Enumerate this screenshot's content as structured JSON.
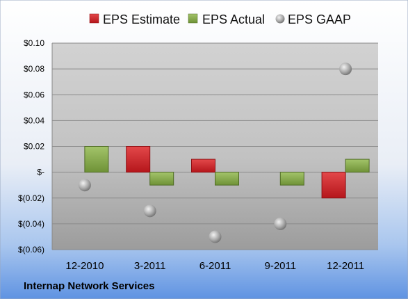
{
  "company": "Internap Network Services",
  "chart_data": {
    "type": "bar",
    "categories": [
      "12-2010",
      "3-2011",
      "6-2011",
      "9-2011",
      "12-2011"
    ],
    "series": [
      {
        "name": "EPS Estimate",
        "kind": "bar",
        "color": "#cc1f24",
        "values": [
          null,
          0.02,
          0.01,
          null,
          -0.02
        ]
      },
      {
        "name": "EPS Actual",
        "kind": "bar",
        "color": "#7fa344",
        "values": [
          0.02,
          -0.01,
          -0.01,
          -0.01,
          0.01
        ]
      },
      {
        "name": "EPS GAAP",
        "kind": "marker",
        "color": "#a0a0a0",
        "values": [
          -0.01,
          -0.03,
          -0.05,
          -0.04,
          0.08
        ]
      }
    ],
    "y_ticks": [
      {
        "value": 0.1,
        "label": "$0.10"
      },
      {
        "value": 0.08,
        "label": "$0.08"
      },
      {
        "value": 0.06,
        "label": "$0.06"
      },
      {
        "value": 0.04,
        "label": "$0.04"
      },
      {
        "value": 0.02,
        "label": "$0.02"
      },
      {
        "value": 0.0,
        "label": "$-"
      },
      {
        "value": -0.02,
        "label": "$(0.02)"
      },
      {
        "value": -0.04,
        "label": "$(0.04)"
      },
      {
        "value": -0.06,
        "label": "$(0.06)"
      }
    ],
    "ylim": [
      -0.06,
      0.1
    ],
    "grid": true,
    "legend_position": "top"
  }
}
